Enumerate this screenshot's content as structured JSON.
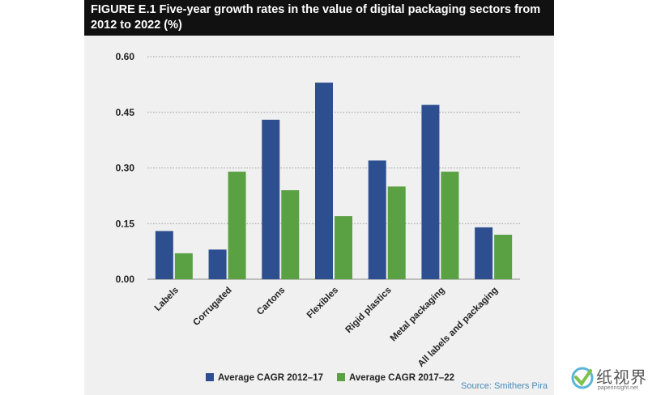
{
  "figure": {
    "title": "FIGURE E.1 Five-year growth rates in the value of digital packaging sectors from 2012 to 2022 (%)",
    "source": "Source: Smithers Pira"
  },
  "watermark": {
    "text": "纸视界",
    "url": "paperinsight.net"
  },
  "colors": {
    "series1": "#2e4f8f",
    "series2": "#5aa144",
    "grid": "#9a9a9a",
    "header_bg": "#111111",
    "panel_bg": "#f0f0f0"
  },
  "chart_data": {
    "type": "bar",
    "title": "FIGURE E.1 Five-year growth rates in the value of digital packaging sectors from 2012 to 2022 (%)",
    "xlabel": "",
    "ylabel": "",
    "categories": [
      "Labels",
      "Corrugated",
      "Cartons",
      "Flexibles",
      "Rigid plastics",
      "Metal packaging",
      "All labels and packaging"
    ],
    "series": [
      {
        "name": "Average CAGR 2012–17",
        "values": [
          0.13,
          0.08,
          0.43,
          0.53,
          0.32,
          0.47,
          0.14
        ]
      },
      {
        "name": "Average CAGR 2017–22",
        "values": [
          0.07,
          0.29,
          0.24,
          0.17,
          0.25,
          0.29,
          0.12
        ]
      }
    ],
    "ylim": [
      0,
      0.6
    ],
    "yticks": [
      "0.00",
      "0.15",
      "0.30",
      "0.45",
      "0.60"
    ],
    "grid": true,
    "legend_position": "bottom"
  }
}
